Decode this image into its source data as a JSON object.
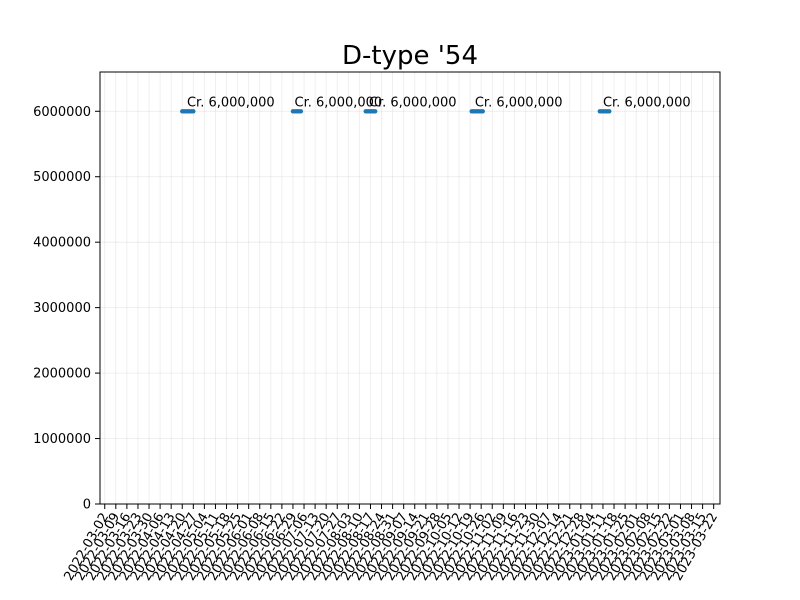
{
  "chart_data": {
    "type": "line",
    "title": "D-type '54",
    "xlabel": "",
    "ylabel": "",
    "grid": true,
    "ylim": [
      0,
      6600000
    ],
    "xlim": [
      "2022-02-27",
      "2023-03-26"
    ],
    "y_ticks": [
      "0",
      "1000000",
      "2000000",
      "3000000",
      "4000000",
      "5000000",
      "6000000"
    ],
    "x_ticks": [
      "2022-03-02",
      "2022-03-09",
      "2022-03-16",
      "2022-03-23",
      "2022-03-30",
      "2022-04-06",
      "2022-04-13",
      "2022-04-20",
      "2022-04-27",
      "2022-05-04",
      "2022-05-11",
      "2022-05-18",
      "2022-05-25",
      "2022-06-01",
      "2022-06-08",
      "2022-06-15",
      "2022-06-22",
      "2022-06-29",
      "2022-07-06",
      "2022-07-13",
      "2022-07-20",
      "2022-07-27",
      "2022-08-03",
      "2022-08-10",
      "2022-08-17",
      "2022-08-24",
      "2022-08-31",
      "2022-09-07",
      "2022-09-14",
      "2022-09-21",
      "2022-09-28",
      "2022-10-05",
      "2022-10-12",
      "2022-10-19",
      "2022-10-26",
      "2022-11-02",
      "2022-11-09",
      "2022-11-16",
      "2022-11-23",
      "2022-11-30",
      "2022-12-07",
      "2022-12-14",
      "2022-12-21",
      "2022-12-28",
      "2023-01-04",
      "2023-01-11",
      "2023-01-18",
      "2023-01-25",
      "2023-02-01",
      "2023-02-08",
      "2023-02-15",
      "2023-02-22",
      "2023-03-01",
      "2023-03-08",
      "2023-03-15",
      "2023-03-22"
    ],
    "series": [
      {
        "color": "#1f77b4",
        "segments": [
          {
            "x": [
              "2022-04-20",
              "2022-04-21",
              "2022-04-22",
              "2022-04-23",
              "2022-04-24",
              "2022-04-25",
              "2022-04-26",
              "2022-04-27"
            ],
            "y": [
              6000000,
              6000000,
              6000000,
              6000000,
              6000000,
              6000000,
              6000000,
              6000000
            ]
          },
          {
            "x": [
              "2022-06-29",
              "2022-06-30",
              "2022-07-01",
              "2022-07-02",
              "2022-07-03",
              "2022-07-04"
            ],
            "y": [
              6000000,
              6000000,
              6000000,
              6000000,
              6000000,
              6000000
            ]
          },
          {
            "x": [
              "2022-08-14",
              "2022-08-15",
              "2022-08-16",
              "2022-08-17",
              "2022-08-18",
              "2022-08-19",
              "2022-08-20"
            ],
            "y": [
              6000000,
              6000000,
              6000000,
              6000000,
              6000000,
              6000000,
              6000000
            ]
          },
          {
            "x": [
              "2022-10-20",
              "2022-10-21",
              "2022-10-22",
              "2022-10-23",
              "2022-10-24",
              "2022-10-25",
              "2022-10-26",
              "2022-10-27"
            ],
            "y": [
              6000000,
              6000000,
              6000000,
              6000000,
              6000000,
              6000000,
              6000000,
              6000000
            ]
          },
          {
            "x": [
              "2023-01-09",
              "2023-01-10",
              "2023-01-11",
              "2023-01-12",
              "2023-01-13",
              "2023-01-14",
              "2023-01-15"
            ],
            "y": [
              6000000,
              6000000,
              6000000,
              6000000,
              6000000,
              6000000,
              6000000
            ]
          }
        ]
      }
    ],
    "annotations": [
      {
        "text": "Cr. 6,000,000",
        "x": "2022-04-23",
        "y": 6000000
      },
      {
        "text": "Cr. 6,000,000",
        "x": "2022-06-30",
        "y": 6000000
      },
      {
        "text": "Cr. 6,000,000",
        "x": "2022-08-16",
        "y": 6000000
      },
      {
        "text": "Cr. 6,000,000",
        "x": "2022-10-22",
        "y": 6000000
      },
      {
        "text": "Cr. 6,000,000",
        "x": "2023-01-11",
        "y": 6000000
      }
    ]
  }
}
